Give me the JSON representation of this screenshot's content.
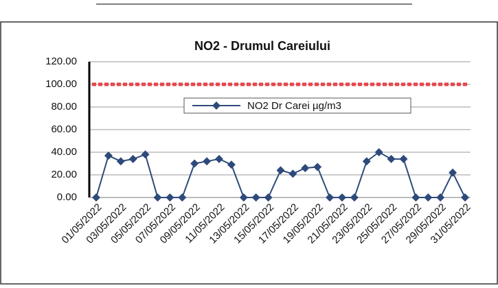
{
  "chart_data": {
    "type": "line",
    "title": "NO2 - Drumul Careiului",
    "categories": [
      "01/05/2022",
      null,
      "03/05/2022",
      null,
      "05/05/2022",
      null,
      "07/05/2022",
      null,
      "09/05/2022",
      null,
      "11/05/2022",
      null,
      "13/05/2022",
      null,
      "15/05/2022",
      null,
      "17/05/2022",
      null,
      "19/05/2022",
      null,
      "21/05/2022",
      null,
      "23/05/2022",
      null,
      "25/05/2022",
      null,
      "27/05/2022",
      null,
      "29/05/2022",
      null,
      "31/05/2022"
    ],
    "series": [
      {
        "name": "NO2 Dr Carei  µg/m3",
        "color": "#2e4a7a",
        "values": [
          0,
          37,
          32,
          34,
          38,
          0,
          0,
          0,
          30,
          32,
          34,
          29,
          0,
          0,
          0,
          24,
          21,
          26,
          27,
          0,
          0,
          0,
          32,
          40,
          34,
          34,
          0,
          0,
          0,
          22,
          0
        ]
      }
    ],
    "reference_line": {
      "value": 100,
      "color": "#e8434a"
    },
    "ylim": [
      0,
      120
    ],
    "yticks": [
      {
        "value": 0,
        "label": "0.00"
      },
      {
        "value": 20,
        "label": "20.00"
      },
      {
        "value": 40,
        "label": "40.00"
      },
      {
        "value": 60,
        "label": "60.00"
      },
      {
        "value": 80,
        "label": "80.00"
      },
      {
        "value": 100,
        "label": "100.00"
      },
      {
        "value": 120,
        "label": "120.00"
      }
    ],
    "grid": true
  }
}
